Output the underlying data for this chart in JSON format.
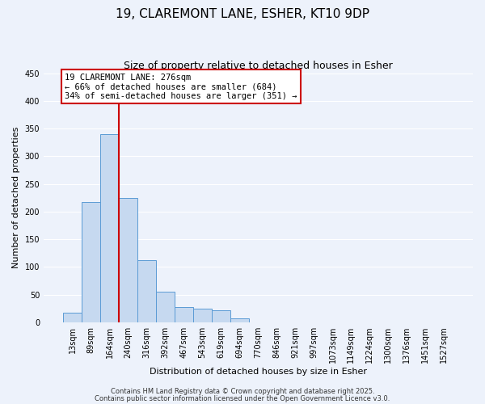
{
  "title": "19, CLAREMONT LANE, ESHER, KT10 9DP",
  "subtitle": "Size of property relative to detached houses in Esher",
  "xlabel": "Distribution of detached houses by size in Esher",
  "ylabel": "Number of detached properties",
  "bar_labels": [
    "13sqm",
    "89sqm",
    "164sqm",
    "240sqm",
    "316sqm",
    "392sqm",
    "467sqm",
    "543sqm",
    "619sqm",
    "694sqm",
    "770sqm",
    "846sqm",
    "921sqm",
    "997sqm",
    "1073sqm",
    "1149sqm",
    "1224sqm",
    "1300sqm",
    "1376sqm",
    "1451sqm",
    "1527sqm"
  ],
  "bar_values": [
    17,
    218,
    340,
    224,
    113,
    55,
    27,
    25,
    22,
    7,
    0,
    0,
    0,
    0,
    0,
    0,
    0,
    0,
    0,
    0,
    0
  ],
  "bar_color": "#c6d9f0",
  "bar_edge_color": "#5b9bd5",
  "vline_color": "#cc0000",
  "vline_position": 2.5,
  "ylim": [
    0,
    450
  ],
  "yticks": [
    0,
    50,
    100,
    150,
    200,
    250,
    300,
    350,
    400,
    450
  ],
  "annotation_title": "19 CLAREMONT LANE: 276sqm",
  "annotation_line1": "← 66% of detached houses are smaller (684)",
  "annotation_line2": "34% of semi-detached houses are larger (351) →",
  "footer_line1": "Contains HM Land Registry data © Crown copyright and database right 2025.",
  "footer_line2": "Contains public sector information licensed under the Open Government Licence v3.0.",
  "background_color": "#edf2fb",
  "grid_color": "#ffffff",
  "title_fontsize": 11,
  "subtitle_fontsize": 9,
  "ylabel_fontsize": 8,
  "xlabel_fontsize": 8,
  "tick_fontsize": 7,
  "ann_fontsize": 7.5,
  "footer_fontsize": 6
}
